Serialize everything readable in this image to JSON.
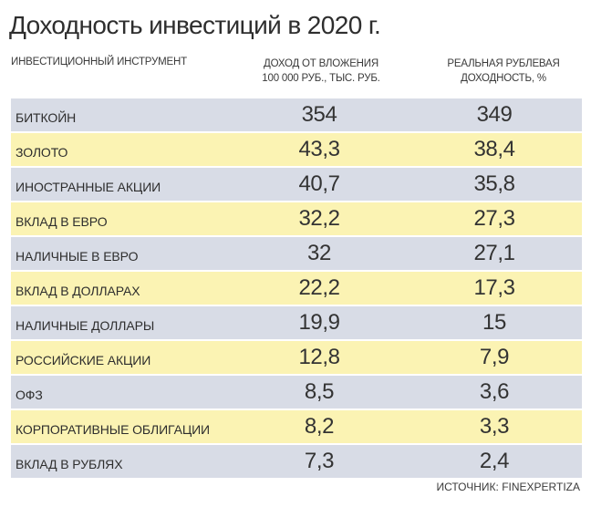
{
  "title": "Доходность инвестиций в 2020 г.",
  "source": "ИСТОЧНИК: FINEXPERTIZA",
  "chart_data": {
    "type": "table",
    "columns": [
      "ИНВЕСТИЦИОННЫЙ ИНСТРУМЕНТ",
      "ДОХОД ОТ ВЛОЖЕНИЯ\n100 000 РУБ., ТЫС. РУБ.",
      "РЕАЛЬНАЯ РУБЛЕВАЯ\nДОХОДНОСТЬ, %"
    ],
    "rows": [
      {
        "name": "БИТКОЙН",
        "income": "354",
        "real": "349"
      },
      {
        "name": "ЗОЛОТО",
        "income": "43,3",
        "real": "38,4"
      },
      {
        "name": "ИНОСТРАННЫЕ АКЦИИ",
        "income": "40,7",
        "real": "35,8"
      },
      {
        "name": "ВКЛАД В ЕВРО",
        "income": "32,2",
        "real": "27,3"
      },
      {
        "name": "НАЛИЧНЫЕ В ЕВРО",
        "income": "32",
        "real": "27,1"
      },
      {
        "name": "ВКЛАД В ДОЛЛАРАХ",
        "income": "22,2",
        "real": "17,3"
      },
      {
        "name": "НАЛИЧНЫЕ ДОЛЛАРЫ",
        "income": "19,9",
        "real": "15"
      },
      {
        "name": "РОССИЙСКИЕ АКЦИИ",
        "income": "12,8",
        "real": "7,9"
      },
      {
        "name": "ОФЗ",
        "income": "8,5",
        "real": "3,6"
      },
      {
        "name": "КОРПОРАТИВНЫЕ ОБЛИГАЦИИ",
        "income": "8,2",
        "real": "3,3"
      },
      {
        "name": "ВКЛАД В РУБЛЯХ",
        "income": "7,3",
        "real": "2,4"
      }
    ],
    "row_colors": [
      "#d8dce6",
      "#fbf3b3"
    ]
  }
}
